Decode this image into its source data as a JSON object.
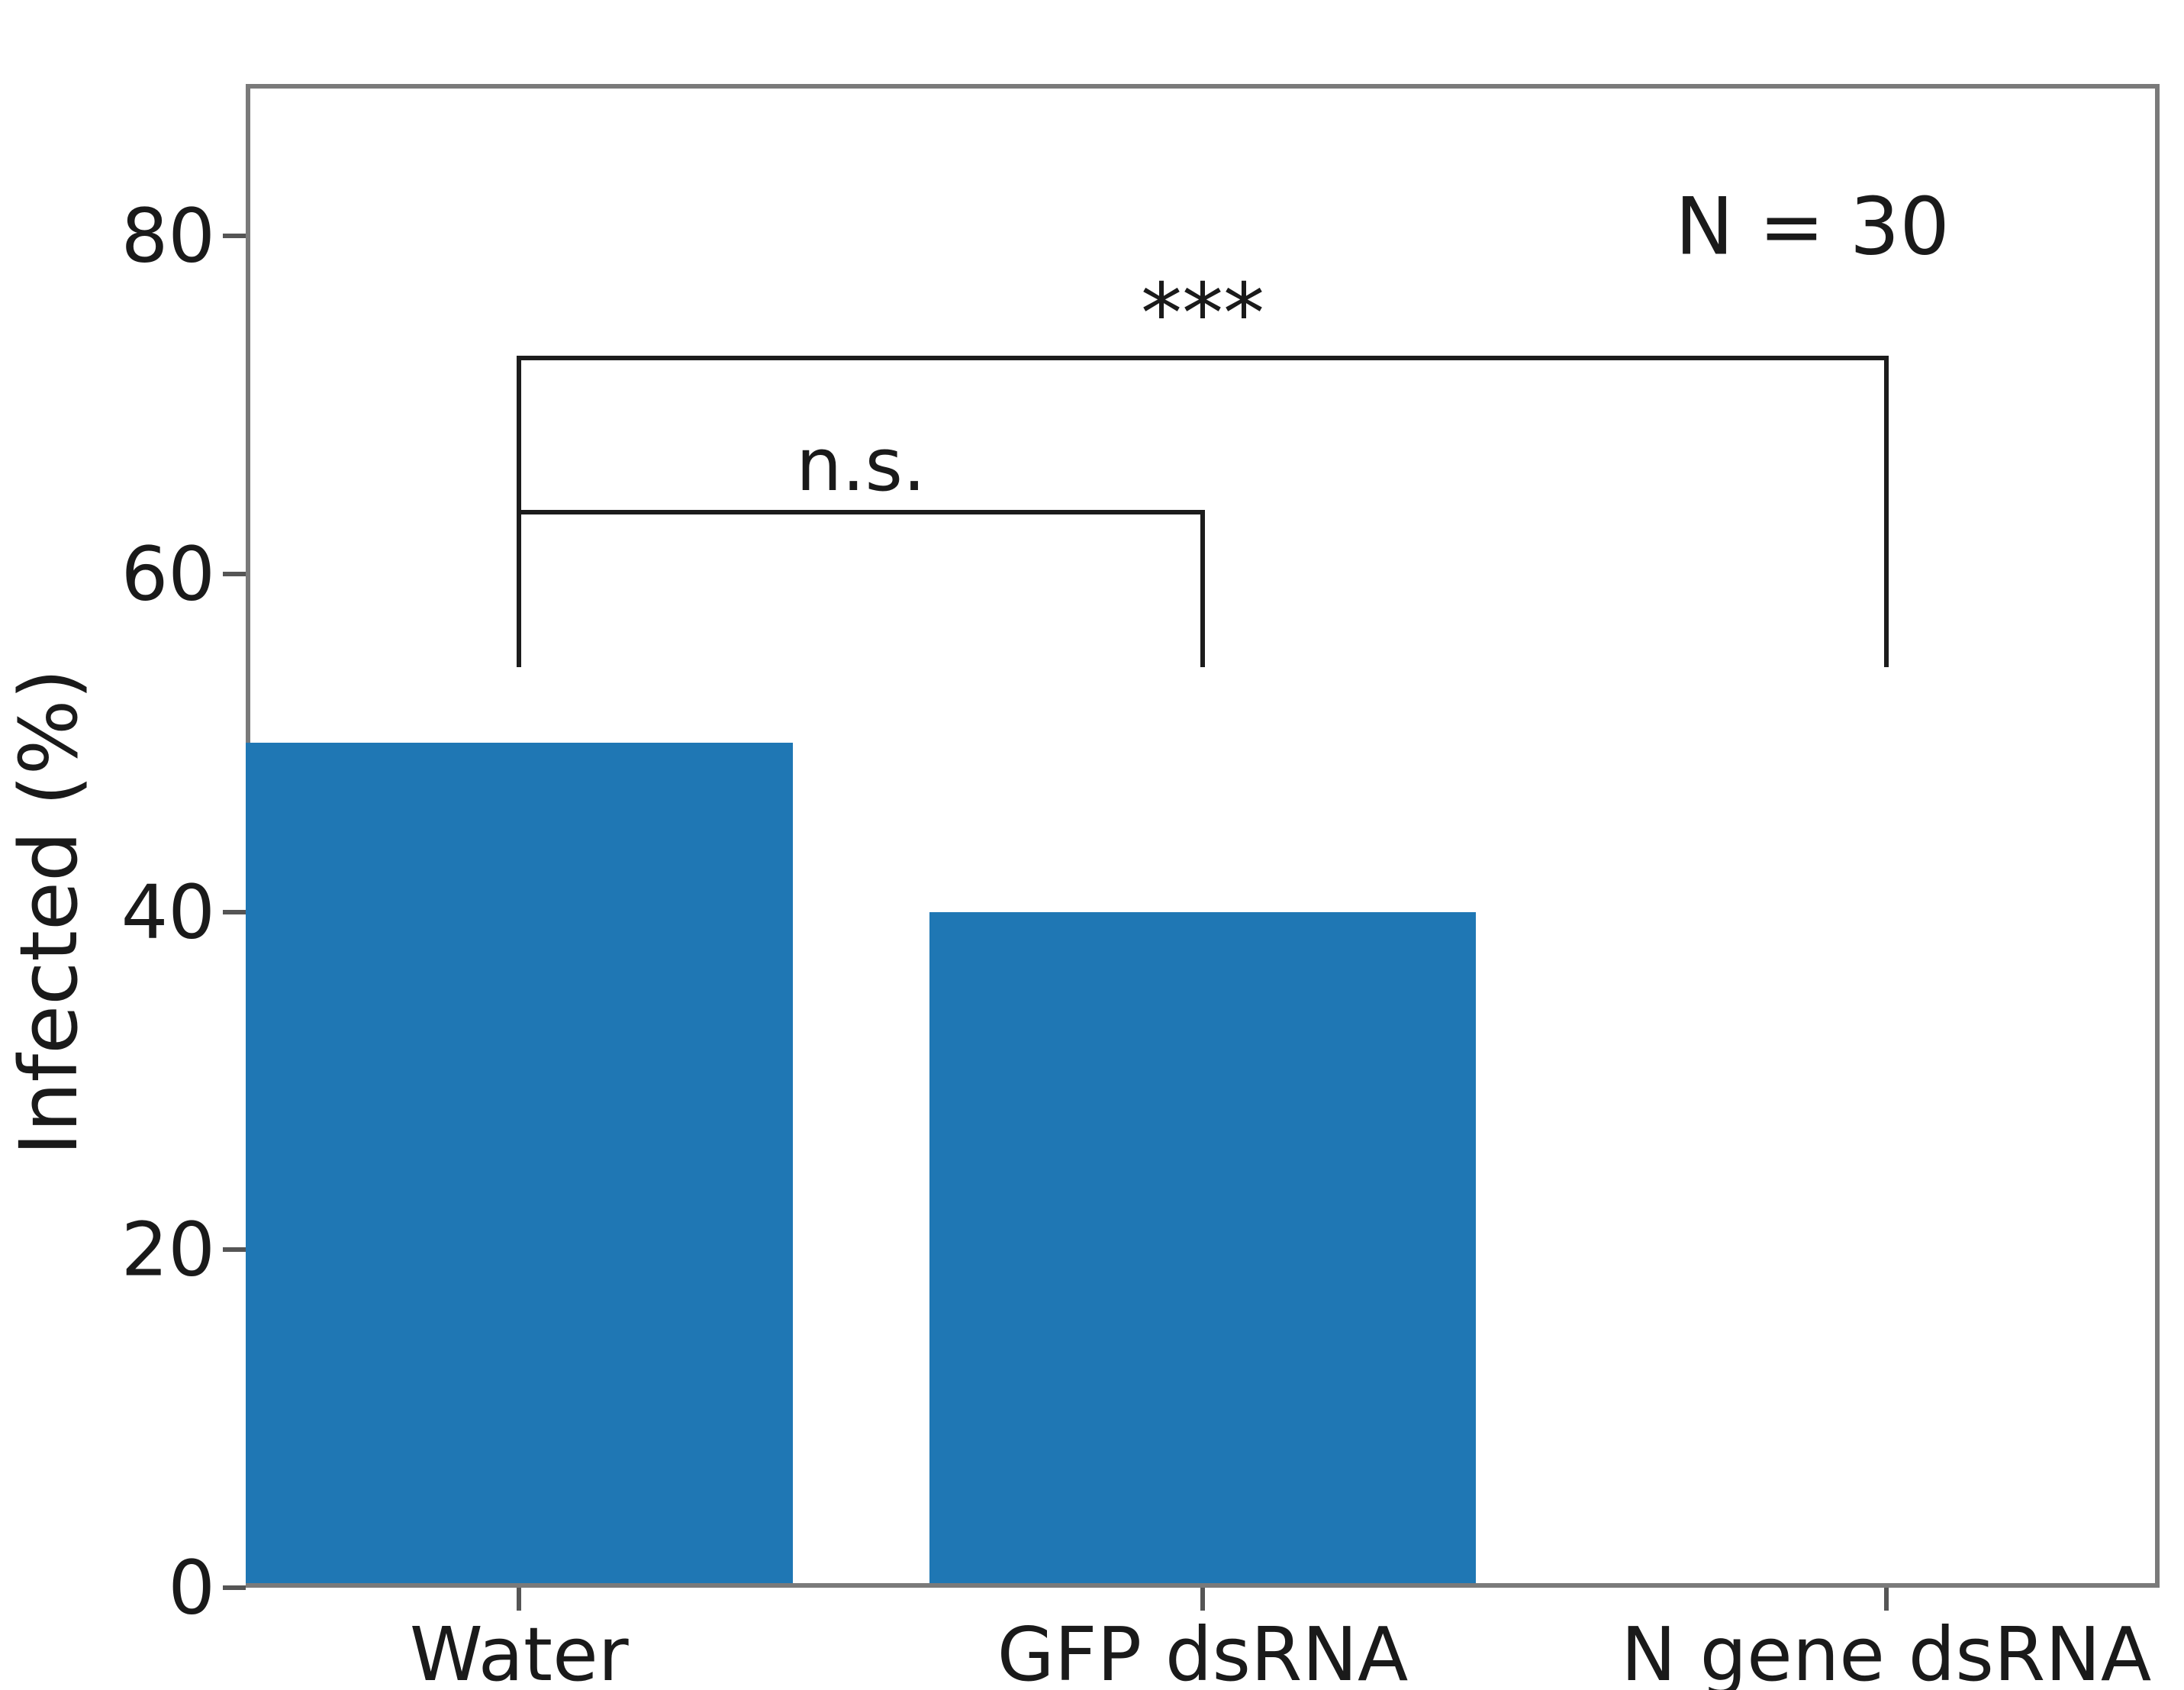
{
  "figure": {
    "background": "#ffffff"
  },
  "chart_data": {
    "type": "bar",
    "title": "",
    "categories": [
      "Water",
      "GFP dsRNA",
      "N gene dsRNA"
    ],
    "values": [
      50,
      40,
      0
    ],
    "xlabel": "",
    "ylabel": "Infected (%)",
    "ylim": [
      0,
      89
    ],
    "xlim": [
      -0.4,
      2.4
    ],
    "yticks": [
      0,
      20,
      40,
      60,
      80
    ],
    "ytick_labels": [
      "0",
      "20",
      "40",
      "60",
      "80"
    ],
    "bar_width": 0.8,
    "grid": false,
    "legend": null,
    "colors": {
      "bar": "#1f77b4",
      "spine": "#7a7a7a",
      "tick": "#555555",
      "text": "#1a1a1a",
      "bracket": "#1c1c1c"
    },
    "annotations": {
      "sample_size": {
        "text": "N = 30",
        "x": 1.892,
        "y": 80.5
      },
      "significance_brackets": [
        {
          "label": "n.s.",
          "x1": 0,
          "x2": 1,
          "bar_y": 63.8,
          "tick_bottom_y": 54.5
        },
        {
          "label": "***",
          "x1": 0,
          "x2": 2,
          "bar_y": 72.9,
          "tick_bottom_y": 54.5
        }
      ]
    }
  }
}
